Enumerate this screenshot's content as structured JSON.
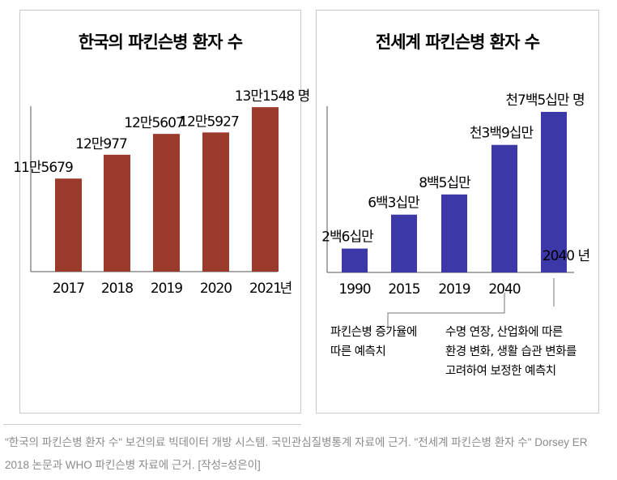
{
  "chart_data": [
    {
      "type": "bar",
      "title": "한국의 파킨슨병 환자 수",
      "categories": [
        "2017",
        "2018",
        "2019",
        "2020",
        "2021"
      ],
      "x_unit": "년",
      "values": [
        115679,
        120977,
        125607,
        125927,
        131548
      ],
      "value_labels": [
        "11만5679",
        "12만977",
        "12만5607",
        "12만5927",
        "13만1548 명"
      ],
      "color": "#9a3a2a",
      "ylim": [
        95000,
        135000
      ]
    },
    {
      "type": "bar",
      "title": "전세계 파킨슨병 환자 수",
      "categories": [
        "1990",
        "2015",
        "2019",
        "2040",
        ""
      ],
      "values": [
        2600000,
        6300000,
        8500000,
        13900000,
        17500000
      ],
      "value_labels": [
        "2백6십만",
        "6백3십만",
        "8백5십만",
        "천3백9십만",
        "천7백5십만 명"
      ],
      "inside_label": "2040 년",
      "color": "#3d38a8",
      "ylim": [
        0,
        19000000
      ],
      "annotations": [
        {
          "bar": 3,
          "lines": [
            "파킨슨병 증가율에",
            "따른 예측치"
          ]
        },
        {
          "bar": 4,
          "lines": [
            "수명 연장, 산업화에 따른",
            "환경 변화, 생활 습관 변화를",
            "고려하여 보정한 예측치"
          ]
        }
      ]
    }
  ],
  "caption": "\"한국의 파킨슨병 환자 수\" 보건의료 빅데이터 개방 시스템. 국민관심질병통계 자료에 근거. \"전세계 파킨슨병 환자 수\" Dorsey ER 2018 논문과 WHO 파킨슨병 자료에 근거. [작성=성은이]"
}
